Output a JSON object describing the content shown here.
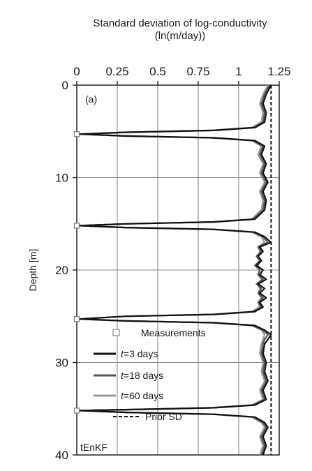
{
  "chart_data": {
    "type": "line",
    "title": "Standard deviation of log-conductivity",
    "title_units": "(ln(m/day))",
    "panel_label": "(a)",
    "method_label": "tEnKF",
    "xlabel": "Standard deviation of log-conductivity (ln(m/day))",
    "ylabel": "Depth [m]",
    "x_axis_position": "top",
    "y_axis_inverted": true,
    "xlim": [
      0,
      1.25
    ],
    "ylim": [
      0,
      40
    ],
    "x_ticks": [
      0,
      0.25,
      0.5,
      0.75,
      1,
      1.25
    ],
    "x_tick_labels": [
      "0",
      "0.25",
      "0.5",
      "0.75",
      "1",
      "1.25"
    ],
    "y_ticks": [
      0,
      10,
      20,
      30,
      40
    ],
    "y_tick_labels": [
      "0",
      "10",
      "20",
      "30",
      "40"
    ],
    "grid": true,
    "legend_position": "lower-center",
    "measurements": {
      "name": "Measurements",
      "marker": "square",
      "points": [
        {
          "x": 0,
          "y": 5.3
        },
        {
          "x": 0,
          "y": 15.2
        },
        {
          "x": 0,
          "y": 25.3
        },
        {
          "x": 0,
          "y": 35.2
        }
      ]
    },
    "prior": {
      "name": "Prior SD",
      "value": 1.2,
      "style": "dashed",
      "color": "#111111"
    },
    "series": [
      {
        "name": "t=3 days",
        "italic_prefix": "t",
        "label_suffix": "=3 days",
        "color": "#111111",
        "width": 2.2,
        "points": [
          [
            1.2,
            0
          ],
          [
            1.17,
            1
          ],
          [
            1.15,
            2
          ],
          [
            1.17,
            3
          ],
          [
            1.16,
            4
          ],
          [
            1.1,
            4.6
          ],
          [
            0.85,
            4.9
          ],
          [
            0.3,
            5.1
          ],
          [
            0.02,
            5.3
          ],
          [
            0.3,
            5.5
          ],
          [
            0.85,
            5.7
          ],
          [
            1.1,
            6.0
          ],
          [
            1.16,
            6.6
          ],
          [
            1.14,
            7.5
          ],
          [
            1.17,
            8.5
          ],
          [
            1.15,
            9.5
          ],
          [
            1.18,
            10.5
          ],
          [
            1.15,
            11.5
          ],
          [
            1.17,
            12.5
          ],
          [
            1.16,
            13.5
          ],
          [
            1.1,
            14.5
          ],
          [
            0.85,
            14.8
          ],
          [
            0.3,
            15.0
          ],
          [
            0.02,
            15.2
          ],
          [
            0.3,
            15.4
          ],
          [
            0.85,
            15.6
          ],
          [
            1.1,
            15.9
          ],
          [
            1.16,
            16.4
          ],
          [
            1.2,
            17.0
          ],
          [
            1.13,
            17.5
          ],
          [
            1.15,
            18.0
          ],
          [
            1.12,
            18.5
          ],
          [
            1.14,
            19.0
          ],
          [
            1.11,
            19.5
          ],
          [
            1.15,
            20.0
          ],
          [
            1.13,
            20.5
          ],
          [
            1.17,
            21.0
          ],
          [
            1.12,
            21.5
          ],
          [
            1.16,
            22.0
          ],
          [
            1.13,
            22.5
          ],
          [
            1.17,
            23.0
          ],
          [
            1.13,
            23.5
          ],
          [
            1.15,
            24.0
          ],
          [
            1.1,
            24.5
          ],
          [
            0.85,
            24.8
          ],
          [
            0.3,
            25.0
          ],
          [
            0.02,
            25.3
          ],
          [
            0.3,
            25.5
          ],
          [
            0.85,
            25.7
          ],
          [
            1.1,
            26.0
          ],
          [
            1.16,
            26.5
          ],
          [
            1.2,
            27.0
          ],
          [
            1.18,
            27.5
          ],
          [
            1.16,
            28.0
          ],
          [
            1.15,
            29.0
          ],
          [
            1.17,
            30.0
          ],
          [
            1.16,
            31.0
          ],
          [
            1.18,
            32.0
          ],
          [
            1.15,
            33.0
          ],
          [
            1.17,
            34.0
          ],
          [
            1.1,
            34.6
          ],
          [
            0.85,
            34.9
          ],
          [
            0.3,
            35.1
          ],
          [
            0.02,
            35.2
          ],
          [
            0.3,
            35.4
          ],
          [
            0.85,
            35.6
          ],
          [
            1.1,
            35.9
          ],
          [
            1.16,
            36.5
          ],
          [
            1.18,
            37.0
          ],
          [
            1.15,
            38.0
          ],
          [
            1.17,
            39.0
          ],
          [
            1.15,
            40
          ]
        ]
      },
      {
        "name": "t=18 days",
        "italic_prefix": "t",
        "label_suffix": "=18 days",
        "color": "#555555",
        "width": 2.2,
        "points": [
          [
            1.19,
            0
          ],
          [
            1.16,
            1
          ],
          [
            1.14,
            2
          ],
          [
            1.16,
            3
          ],
          [
            1.15,
            4
          ],
          [
            1.09,
            4.6
          ],
          [
            0.84,
            4.9
          ],
          [
            0.3,
            5.1
          ],
          [
            0.02,
            5.3
          ],
          [
            0.3,
            5.5
          ],
          [
            0.84,
            5.7
          ],
          [
            1.09,
            6.0
          ],
          [
            1.15,
            6.6
          ],
          [
            1.13,
            7.5
          ],
          [
            1.16,
            8.5
          ],
          [
            1.14,
            9.5
          ],
          [
            1.17,
            10.5
          ],
          [
            1.14,
            11.5
          ],
          [
            1.16,
            12.5
          ],
          [
            1.15,
            13.5
          ],
          [
            1.09,
            14.5
          ],
          [
            0.84,
            14.8
          ],
          [
            0.3,
            15.0
          ],
          [
            0.02,
            15.2
          ],
          [
            0.3,
            15.4
          ],
          [
            0.84,
            15.6
          ],
          [
            1.09,
            15.9
          ],
          [
            1.15,
            16.4
          ],
          [
            1.18,
            17.0
          ],
          [
            1.12,
            17.5
          ],
          [
            1.14,
            18.0
          ],
          [
            1.11,
            18.5
          ],
          [
            1.13,
            19.0
          ],
          [
            1.1,
            19.5
          ],
          [
            1.13,
            20.0
          ],
          [
            1.12,
            20.5
          ],
          [
            1.15,
            21.0
          ],
          [
            1.11,
            21.5
          ],
          [
            1.14,
            22.0
          ],
          [
            1.12,
            22.5
          ],
          [
            1.15,
            23.0
          ],
          [
            1.12,
            23.5
          ],
          [
            1.14,
            24.0
          ],
          [
            1.09,
            24.5
          ],
          [
            0.84,
            24.8
          ],
          [
            0.3,
            25.0
          ],
          [
            0.02,
            25.3
          ],
          [
            0.3,
            25.5
          ],
          [
            0.84,
            25.7
          ],
          [
            1.09,
            26.0
          ],
          [
            1.15,
            26.5
          ],
          [
            1.18,
            27.0
          ],
          [
            1.16,
            27.5
          ],
          [
            1.15,
            28.0
          ],
          [
            1.14,
            29.0
          ],
          [
            1.16,
            30.0
          ],
          [
            1.15,
            31.0
          ],
          [
            1.17,
            32.0
          ],
          [
            1.14,
            33.0
          ],
          [
            1.16,
            34.0
          ],
          [
            1.09,
            34.6
          ],
          [
            0.84,
            34.9
          ],
          [
            0.3,
            35.1
          ],
          [
            0.02,
            35.2
          ],
          [
            0.3,
            35.4
          ],
          [
            0.84,
            35.6
          ],
          [
            1.09,
            35.9
          ],
          [
            1.15,
            36.5
          ],
          [
            1.17,
            37.0
          ],
          [
            1.14,
            38.0
          ],
          [
            1.16,
            39.0
          ],
          [
            1.14,
            40
          ]
        ]
      },
      {
        "name": "t=60 days",
        "italic_prefix": "t",
        "label_suffix": "=60 days",
        "color": "#999999",
        "width": 2.2,
        "points": [
          [
            1.18,
            0
          ],
          [
            1.15,
            1
          ],
          [
            1.13,
            2
          ],
          [
            1.15,
            3
          ],
          [
            1.14,
            4
          ],
          [
            1.08,
            4.6
          ],
          [
            0.83,
            4.9
          ],
          [
            0.3,
            5.1
          ],
          [
            0.02,
            5.3
          ],
          [
            0.3,
            5.5
          ],
          [
            0.83,
            5.7
          ],
          [
            1.08,
            6.0
          ],
          [
            1.14,
            6.6
          ],
          [
            1.12,
            7.5
          ],
          [
            1.15,
            8.5
          ],
          [
            1.13,
            9.5
          ],
          [
            1.16,
            10.5
          ],
          [
            1.13,
            11.5
          ],
          [
            1.15,
            12.5
          ],
          [
            1.14,
            13.5
          ],
          [
            1.08,
            14.5
          ],
          [
            0.83,
            14.8
          ],
          [
            0.3,
            15.0
          ],
          [
            0.02,
            15.2
          ],
          [
            0.3,
            15.4
          ],
          [
            0.83,
            15.6
          ],
          [
            1.08,
            15.9
          ],
          [
            1.14,
            16.4
          ],
          [
            1.16,
            17.0
          ],
          [
            1.12,
            17.5
          ],
          [
            1.13,
            18.0
          ],
          [
            1.12,
            18.5
          ],
          [
            1.13,
            19.0
          ],
          [
            1.12,
            19.5
          ],
          [
            1.13,
            20.0
          ],
          [
            1.12,
            20.5
          ],
          [
            1.14,
            21.0
          ],
          [
            1.12,
            21.5
          ],
          [
            1.13,
            22.0
          ],
          [
            1.12,
            22.5
          ],
          [
            1.14,
            23.0
          ],
          [
            1.12,
            23.5
          ],
          [
            1.13,
            24.0
          ],
          [
            1.08,
            24.5
          ],
          [
            0.83,
            24.8
          ],
          [
            0.3,
            25.0
          ],
          [
            0.02,
            25.3
          ],
          [
            0.3,
            25.5
          ],
          [
            0.83,
            25.7
          ],
          [
            1.08,
            26.0
          ],
          [
            1.14,
            26.5
          ],
          [
            1.16,
            27.0
          ],
          [
            1.15,
            27.5
          ],
          [
            1.14,
            28.0
          ],
          [
            1.13,
            29.0
          ],
          [
            1.15,
            30.0
          ],
          [
            1.14,
            31.0
          ],
          [
            1.16,
            32.0
          ],
          [
            1.13,
            33.0
          ],
          [
            1.15,
            34.0
          ],
          [
            1.08,
            34.6
          ],
          [
            0.83,
            34.9
          ],
          [
            0.3,
            35.1
          ],
          [
            0.02,
            35.2
          ],
          [
            0.3,
            35.4
          ],
          [
            0.83,
            35.6
          ],
          [
            1.08,
            35.9
          ],
          [
            1.14,
            36.5
          ],
          [
            1.16,
            37.0
          ],
          [
            1.13,
            38.0
          ],
          [
            1.15,
            39.0
          ],
          [
            1.13,
            40
          ]
        ]
      }
    ]
  }
}
